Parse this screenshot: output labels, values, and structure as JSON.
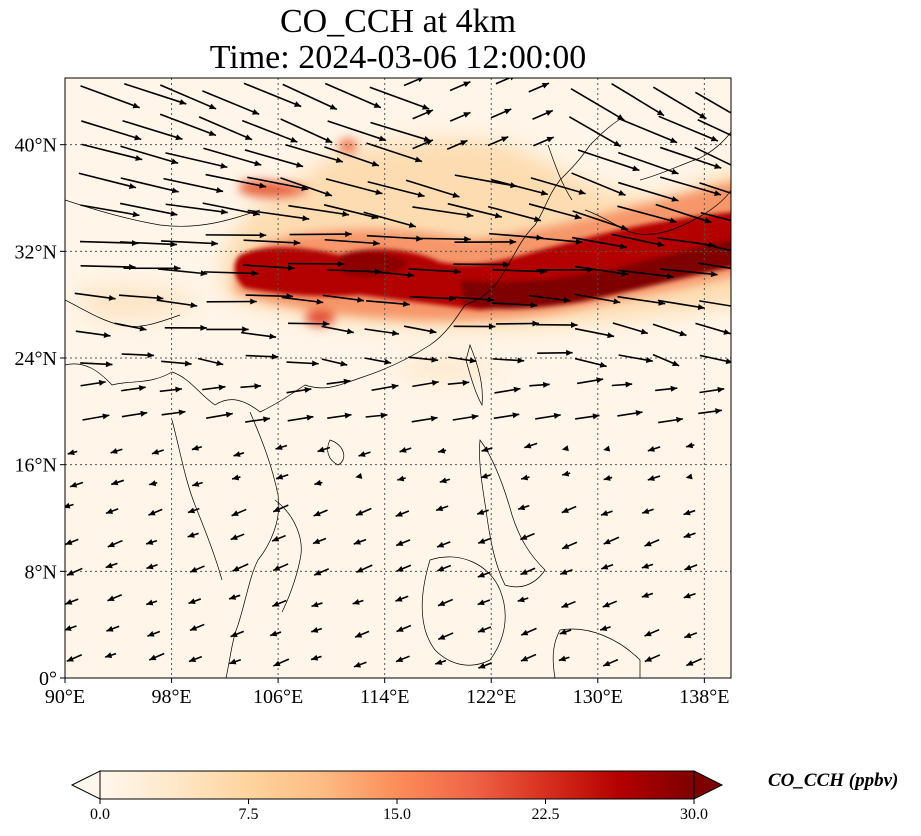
{
  "title_line1": "CO_CCH at 4km",
  "title_line2": "Time: 2024-03-06 12:00:00",
  "map": {
    "lon_range": [
      90,
      140
    ],
    "lat_range": [
      0,
      45
    ],
    "lon_ticks": [
      {
        "value": 90,
        "label": "90°E"
      },
      {
        "value": 98,
        "label": "98°E"
      },
      {
        "value": 106,
        "label": "106°E"
      },
      {
        "value": 114,
        "label": "114°E"
      },
      {
        "value": 122,
        "label": "122°E"
      },
      {
        "value": 130,
        "label": "130°E"
      },
      {
        "value": 138,
        "label": "138°E"
      }
    ],
    "lat_ticks": [
      {
        "value": 0,
        "label": "0°"
      },
      {
        "value": 8,
        "label": "8°N"
      },
      {
        "value": 16,
        "label": "16°N"
      },
      {
        "value": 24,
        "label": "24°N"
      },
      {
        "value": 32,
        "label": "32°N"
      },
      {
        "value": 40,
        "label": "40°N"
      }
    ],
    "gridlines": "dotted",
    "field_colormap": "OrRd",
    "vector_color": "#000000"
  },
  "colorbar": {
    "title": "CO_CCH (ppbv)",
    "min": 0,
    "max": 30,
    "ticks": [
      "0.0",
      "7.5",
      "15.0",
      "22.5",
      "30.0"
    ],
    "extend": "both",
    "colors": [
      "#fff7ec",
      "#fee8c8",
      "#fdd49e",
      "#fdbb84",
      "#fc8d59",
      "#ef6548",
      "#d7301f",
      "#b30000",
      "#7f0000"
    ]
  }
}
